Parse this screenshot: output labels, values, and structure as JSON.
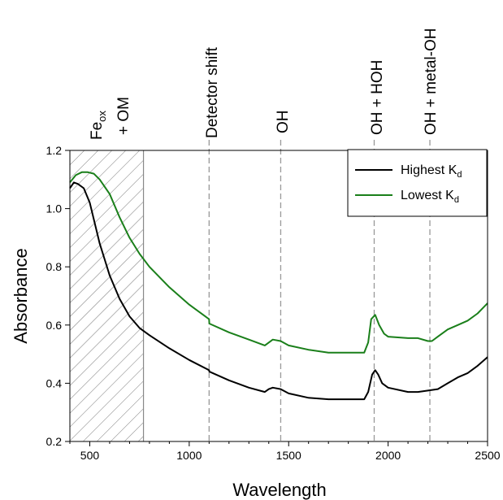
{
  "chart_data": {
    "type": "line",
    "xlabel": "Wavelength",
    "ylabel": "Absorbance",
    "xlim": [
      400,
      2500
    ],
    "ylim": [
      0.2,
      1.2
    ],
    "xticks": [
      500,
      1000,
      1500,
      2000,
      2500
    ],
    "yticks": [
      "0.2",
      "0.4",
      "0.6",
      "0.8",
      "1.0",
      "1.2"
    ],
    "grid": false,
    "legend": {
      "placement": "top-right"
    },
    "shaded_region": {
      "x_range": [
        400,
        770
      ],
      "label_main": "Fe",
      "label_sub": "ox",
      "label_line2": "+ OM"
    },
    "reference_lines": [
      {
        "x": 1100,
        "label": "Detector shift"
      },
      {
        "x": 1460,
        "label": "OH"
      },
      {
        "x": 1930,
        "label": "OH + HOH"
      },
      {
        "x": 2210,
        "label": "OH + metal-OH"
      }
    ],
    "series": [
      {
        "name": "Highest K",
        "name_sub": "d",
        "color": "#000000",
        "x": [
          400,
          420,
          440,
          470,
          500,
          550,
          600,
          650,
          700,
          750,
          800,
          900,
          1000,
          1100,
          1101,
          1200,
          1300,
          1380,
          1400,
          1420,
          1460,
          1500,
          1600,
          1700,
          1800,
          1880,
          1900,
          1920,
          1935,
          1950,
          1970,
          2000,
          2100,
          2150,
          2200,
          2250,
          2300,
          2350,
          2400,
          2450,
          2500
        ],
        "y": [
          1.07,
          1.09,
          1.085,
          1.07,
          1.02,
          0.88,
          0.77,
          0.69,
          0.63,
          0.59,
          0.565,
          0.52,
          0.48,
          0.445,
          0.44,
          0.41,
          0.385,
          0.37,
          0.38,
          0.385,
          0.38,
          0.365,
          0.35,
          0.345,
          0.345,
          0.345,
          0.37,
          0.43,
          0.445,
          0.43,
          0.4,
          0.385,
          0.37,
          0.37,
          0.375,
          0.38,
          0.4,
          0.42,
          0.435,
          0.46,
          0.49
        ]
      },
      {
        "name": "Lowest K",
        "name_sub": "d",
        "color": "#1a7f1a",
        "x": [
          400,
          430,
          460,
          490,
          520,
          550,
          600,
          650,
          700,
          750,
          800,
          900,
          1000,
          1100,
          1101,
          1200,
          1300,
          1380,
          1400,
          1420,
          1460,
          1500,
          1600,
          1700,
          1800,
          1880,
          1900,
          1915,
          1935,
          1955,
          1980,
          2000,
          2100,
          2150,
          2200,
          2220,
          2250,
          2300,
          2350,
          2400,
          2450,
          2500
        ],
        "y": [
          1.09,
          1.115,
          1.125,
          1.125,
          1.12,
          1.1,
          1.05,
          0.97,
          0.9,
          0.845,
          0.8,
          0.73,
          0.67,
          0.62,
          0.605,
          0.575,
          0.55,
          0.53,
          0.54,
          0.55,
          0.545,
          0.53,
          0.515,
          0.505,
          0.505,
          0.505,
          0.54,
          0.62,
          0.635,
          0.6,
          0.57,
          0.56,
          0.555,
          0.555,
          0.545,
          0.545,
          0.56,
          0.585,
          0.6,
          0.615,
          0.64,
          0.675
        ]
      }
    ]
  }
}
